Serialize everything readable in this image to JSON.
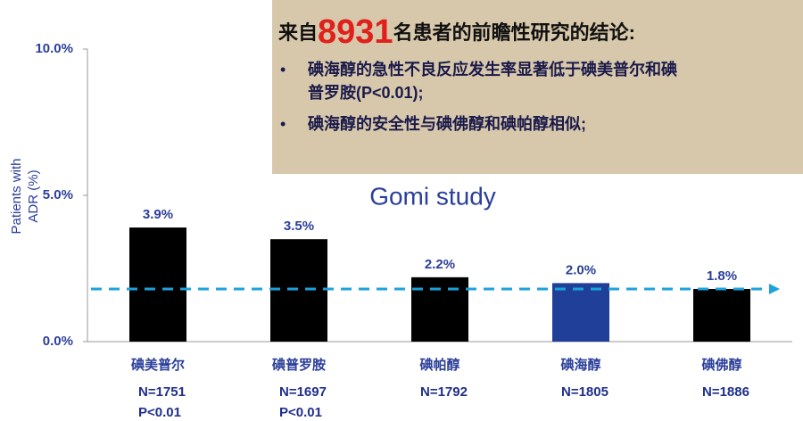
{
  "chart_data": {
    "type": "bar",
    "subtitle": "Gomi study",
    "ylabel": [
      "Patients with",
      "ADR (%)"
    ],
    "categories": [
      "碘美普尔",
      "碘普罗胺",
      "碘帕醇",
      "碘海醇",
      "碘佛醇"
    ],
    "values": [
      3.9,
      3.5,
      2.2,
      2.0,
      1.8
    ],
    "value_labels": [
      "3.9%",
      "3.5%",
      "2.2%",
      "2.0%",
      "1.8%"
    ],
    "colors": [
      "#000000",
      "#000000",
      "#000000",
      "#1f3f99",
      "#000000"
    ],
    "notes": [
      [
        "N=1751",
        "P<0.01"
      ],
      [
        "N=1697",
        "P<0.01"
      ],
      [
        "N=1792"
      ],
      [
        "N=1805"
      ],
      [
        "N=1886"
      ]
    ],
    "reference_line": {
      "value": 1.8,
      "color": "#1aa3dc"
    },
    "ylim": [
      0,
      10
    ],
    "yticks": [
      {
        "value": 0,
        "label": "0.0%"
      },
      {
        "value": 5,
        "label": "5.0%"
      },
      {
        "value": 10,
        "label": "10.0%"
      }
    ],
    "grid": false
  },
  "annotation_box": {
    "prefix": "来自",
    "number": "8931",
    "suffix": "名患者的前瞻性研究的结论:",
    "bullets": [
      [
        "碘海醇的急性不良反应发生率显著低于碘美普尔和碘",
        "普罗胺(P<0.01);"
      ],
      [
        "碘海醇的安全性与碘佛醇和碘帕醇相似;"
      ]
    ]
  }
}
